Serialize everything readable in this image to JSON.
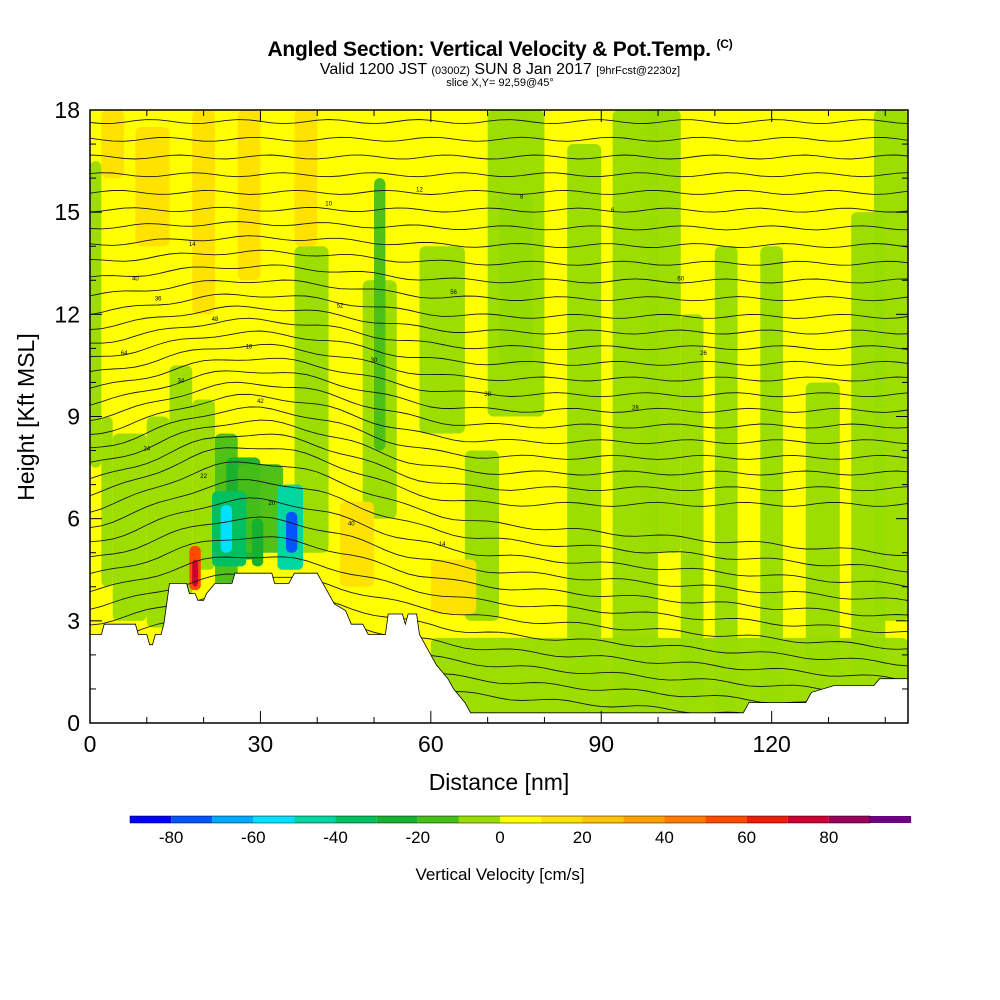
{
  "header": {
    "title": "Angled Section: Vertical Velocity & Pot.Temp.",
    "title_mark": "(C)",
    "valid_prefix": "Valid 1200 JST",
    "valid_utc": "(0300Z)",
    "valid_date": "SUN 8 Jan 2017",
    "valid_fcst": "[9hrFcst@2230z]",
    "slice": "slice X,Y= 92,59@45°"
  },
  "chart_data": {
    "type": "heatmap",
    "title": "Angled Section: Vertical Velocity & Pot.Temp.",
    "xlabel": "Distance [nm]",
    "ylabel": "Height [Kft MSL]",
    "xlim": [
      0,
      144
    ],
    "ylim": [
      0,
      18
    ],
    "x_ticks": [
      0,
      30,
      60,
      90,
      120
    ],
    "y_ticks": [
      0,
      3,
      6,
      9,
      12,
      15,
      18
    ],
    "colorbar": {
      "label": "Vertical Velocity [cm/s]",
      "ticks": [
        -80,
        -60,
        -40,
        -20,
        0,
        20,
        40,
        60,
        80
      ],
      "bins": [
        -90,
        -80,
        -70,
        -60,
        -50,
        -40,
        -30,
        -20,
        -10,
        0,
        10,
        20,
        30,
        40,
        50,
        60,
        70,
        80,
        90
      ],
      "colors": [
        "#0000ff",
        "#0055ff",
        "#00a9ff",
        "#00e0ff",
        "#00d6a0",
        "#00c060",
        "#18b030",
        "#47be18",
        "#98dc00",
        "#ffff00",
        "#ffe000",
        "#ffc400",
        "#ffa000",
        "#ff7a00",
        "#ff4a00",
        "#ee1c0a",
        "#cc0033",
        "#99005c",
        "#6b0080"
      ]
    },
    "theta_contour_labels": [
      "40",
      "14",
      "18",
      "10",
      "12",
      "8",
      "6",
      "36",
      "48",
      "52",
      "56",
      "60",
      "64",
      "34",
      "42",
      "30",
      "38",
      "28",
      "26",
      "24",
      "22",
      "20"
    ],
    "terrain_kft": [
      [
        0,
        2.6
      ],
      [
        2,
        2.6
      ],
      [
        2.5,
        2.9
      ],
      [
        8,
        2.9
      ],
      [
        8.5,
        2.6
      ],
      [
        10,
        2.6
      ],
      [
        10.5,
        2.3
      ],
      [
        11,
        2.3
      ],
      [
        11.5,
        2.6
      ],
      [
        12.5,
        2.6
      ],
      [
        13,
        2.9
      ],
      [
        13.5,
        3.5
      ],
      [
        14,
        4.1
      ],
      [
        17,
        4.1
      ],
      [
        17.5,
        3.8
      ],
      [
        18.5,
        3.8
      ],
      [
        19,
        3.6
      ],
      [
        20,
        3.6
      ],
      [
        20.5,
        3.8
      ],
      [
        22,
        4.1
      ],
      [
        25,
        4.1
      ],
      [
        25.5,
        4.4
      ],
      [
        32,
        4.4
      ],
      [
        32.5,
        4.1
      ],
      [
        35,
        4.1
      ],
      [
        36,
        4.4
      ],
      [
        40,
        4.4
      ],
      [
        41,
        4.1
      ],
      [
        42,
        3.8
      ],
      [
        43,
        3.5
      ],
      [
        45,
        3.3
      ],
      [
        46,
        2.9
      ],
      [
        48,
        2.9
      ],
      [
        49,
        2.6
      ],
      [
        52,
        2.6
      ],
      [
        52.5,
        3.2
      ],
      [
        55,
        3.2
      ],
      [
        55.5,
        2.9
      ],
      [
        56,
        3.2
      ],
      [
        57.5,
        3.2
      ],
      [
        58,
        2.6
      ],
      [
        59,
        2.3
      ],
      [
        60,
        2.0
      ],
      [
        61,
        1.7
      ],
      [
        62,
        1.5
      ],
      [
        63,
        1.3
      ],
      [
        64,
        1.0
      ],
      [
        66,
        0.6
      ],
      [
        67,
        0.3
      ],
      [
        115,
        0.3
      ],
      [
        116,
        0.6
      ],
      [
        126,
        0.6
      ],
      [
        127,
        0.9
      ],
      [
        131,
        1.1
      ],
      [
        138,
        1.1
      ],
      [
        139,
        1.3
      ],
      [
        144,
        1.3
      ]
    ]
  }
}
